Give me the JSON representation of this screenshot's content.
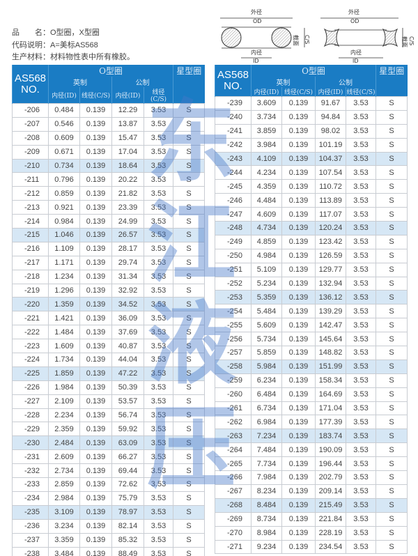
{
  "info": {
    "product_label": "品　　名：",
    "product_value": "O型圈，X型圈",
    "code_label": "代码说明：",
    "code_value": "A=美标AS568",
    "material_label": "生产材料：",
    "material_value": "材料物性表中所有橡胶。"
  },
  "diagram": {
    "od_cn": "外径",
    "od": "OD",
    "id_cn": "内径",
    "id": "ID",
    "cs_cn": "截面",
    "cs": "C/S"
  },
  "watermark": [
    "东",
    "江",
    "液",
    "压"
  ],
  "header": {
    "no_line1": "AS568",
    "no_line2": "NO.",
    "oring": "O型圈",
    "xring": "星型圈",
    "inch": "英制",
    "metric": "公制",
    "inner": "内径(ID)",
    "cs": "线径(C/S)"
  },
  "colors": {
    "header_bg": "#1a7cc4",
    "highlight_row": "#d6e7f5"
  },
  "tables": {
    "left": [
      [
        "-206",
        "0.484",
        "0.139",
        "12.29",
        "3.53",
        "S"
      ],
      [
        "-207",
        "0.546",
        "0.139",
        "13.87",
        "3.53",
        "S"
      ],
      [
        "-208",
        "0.609",
        "0.139",
        "15.47",
        "3.53",
        "S"
      ],
      [
        "-209",
        "0.671",
        "0.139",
        "17.04",
        "3.53",
        "S"
      ],
      [
        "-210",
        "0.734",
        "0.139",
        "18.64",
        "3.53",
        "S"
      ],
      [
        "-211",
        "0.796",
        "0.139",
        "20.22",
        "3.53",
        "S"
      ],
      [
        "-212",
        "0.859",
        "0.139",
        "21.82",
        "3.53",
        "S"
      ],
      [
        "-213",
        "0.921",
        "0.139",
        "23.39",
        "3.53",
        "S"
      ],
      [
        "-214",
        "0.984",
        "0.139",
        "24.99",
        "3.53",
        "S"
      ],
      [
        "-215",
        "1.046",
        "0.139",
        "26.57",
        "3.53",
        "S"
      ],
      [
        "-216",
        "1.109",
        "0.139",
        "28.17",
        "3.53",
        "S"
      ],
      [
        "-217",
        "1.171",
        "0.139",
        "29.74",
        "3.53",
        "S"
      ],
      [
        "-218",
        "1.234",
        "0.139",
        "31.34",
        "3.53",
        "S"
      ],
      [
        "-219",
        "1.296",
        "0.139",
        "32.92",
        "3.53",
        "S"
      ],
      [
        "-220",
        "1.359",
        "0.139",
        "34.52",
        "3.53",
        "S"
      ],
      [
        "-221",
        "1.421",
        "0.139",
        "36.09",
        "3.53",
        "S"
      ],
      [
        "-222",
        "1.484",
        "0.139",
        "37.69",
        "3.53",
        "S"
      ],
      [
        "-223",
        "1.609",
        "0.139",
        "40.87",
        "3.53",
        "S"
      ],
      [
        "-224",
        "1.734",
        "0.139",
        "44.04",
        "3.53",
        "S"
      ],
      [
        "-225",
        "1.859",
        "0.139",
        "47.22",
        "3.53",
        "S"
      ],
      [
        "-226",
        "1.984",
        "0.139",
        "50.39",
        "3.53",
        "S"
      ],
      [
        "-227",
        "2.109",
        "0.139",
        "53.57",
        "3.53",
        "S"
      ],
      [
        "-228",
        "2.234",
        "0.139",
        "56.74",
        "3.53",
        "S"
      ],
      [
        "-229",
        "2.359",
        "0.139",
        "59.92",
        "3.53",
        "S"
      ],
      [
        "-230",
        "2.484",
        "0.139",
        "63.09",
        "3.53",
        "S"
      ],
      [
        "-231",
        "2.609",
        "0.139",
        "66.27",
        "3.53",
        "S"
      ],
      [
        "-232",
        "2.734",
        "0.139",
        "69.44",
        "3.53",
        "S"
      ],
      [
        "-233",
        "2.859",
        "0.139",
        "72.62",
        "3.53",
        "S"
      ],
      [
        "-234",
        "2.984",
        "0.139",
        "75.79",
        "3.53",
        "S"
      ],
      [
        "-235",
        "3.109",
        "0.139",
        "78.97",
        "3.53",
        "S"
      ],
      [
        "-236",
        "3.234",
        "0.139",
        "82.14",
        "3.53",
        "S"
      ],
      [
        "-237",
        "3.359",
        "0.139",
        "85.32",
        "3.53",
        "S"
      ],
      [
        "-238",
        "3.484",
        "0.139",
        "88.49",
        "3.53",
        "S"
      ]
    ],
    "right": [
      [
        "-239",
        "3.609",
        "0.139",
        "91.67",
        "3.53",
        "S"
      ],
      [
        "-240",
        "3.734",
        "0.139",
        "94.84",
        "3.53",
        "S"
      ],
      [
        "-241",
        "3.859",
        "0.139",
        "98.02",
        "3.53",
        "S"
      ],
      [
        "-242",
        "3.984",
        "0.139",
        "101.19",
        "3.53",
        "S"
      ],
      [
        "-243",
        "4.109",
        "0.139",
        "104.37",
        "3.53",
        "S"
      ],
      [
        "-244",
        "4.234",
        "0.139",
        "107.54",
        "3.53",
        "S"
      ],
      [
        "-245",
        "4.359",
        "0.139",
        "110.72",
        "3.53",
        "S"
      ],
      [
        "-246",
        "4.484",
        "0.139",
        "113.89",
        "3.53",
        "S"
      ],
      [
        "-247",
        "4.609",
        "0.139",
        "117.07",
        "3.53",
        "S"
      ],
      [
        "-248",
        "4.734",
        "0.139",
        "120.24",
        "3.53",
        "S"
      ],
      [
        "-249",
        "4.859",
        "0.139",
        "123.42",
        "3.53",
        "S"
      ],
      [
        "-250",
        "4.984",
        "0.139",
        "126.59",
        "3.53",
        "S"
      ],
      [
        "-251",
        "5.109",
        "0.139",
        "129.77",
        "3.53",
        "S"
      ],
      [
        "-252",
        "5.234",
        "0.139",
        "132.94",
        "3.53",
        "S"
      ],
      [
        "-253",
        "5.359",
        "0.139",
        "136.12",
        "3.53",
        "S"
      ],
      [
        "-254",
        "5.484",
        "0.139",
        "139.29",
        "3.53",
        "S"
      ],
      [
        "-255",
        "5.609",
        "0.139",
        "142.47",
        "3.53",
        "S"
      ],
      [
        "-256",
        "5.734",
        "0.139",
        "145.64",
        "3.53",
        "S"
      ],
      [
        "-257",
        "5.859",
        "0.139",
        "148.82",
        "3.53",
        "S"
      ],
      [
        "-258",
        "5.984",
        "0.139",
        "151.99",
        "3.53",
        "S"
      ],
      [
        "-259",
        "6.234",
        "0.139",
        "158.34",
        "3.53",
        "S"
      ],
      [
        "-260",
        "6.484",
        "0.139",
        "164.69",
        "3.53",
        "S"
      ],
      [
        "-261",
        "6.734",
        "0.139",
        "171.04",
        "3.53",
        "S"
      ],
      [
        "-262",
        "6.984",
        "0.139",
        "177.39",
        "3.53",
        "S"
      ],
      [
        "-263",
        "7.234",
        "0.139",
        "183.74",
        "3.53",
        "S"
      ],
      [
        "-264",
        "7.484",
        "0.139",
        "190.09",
        "3.53",
        "S"
      ],
      [
        "-265",
        "7.734",
        "0.139",
        "196.44",
        "3.53",
        "S"
      ],
      [
        "-266",
        "7.984",
        "0.139",
        "202.79",
        "3.53",
        "S"
      ],
      [
        "-267",
        "8.234",
        "0.139",
        "209.14",
        "3.53",
        "S"
      ],
      [
        "-268",
        "8.484",
        "0.139",
        "215.49",
        "3.53",
        "S"
      ],
      [
        "-269",
        "8.734",
        "0.139",
        "221.84",
        "3.53",
        "S"
      ],
      [
        "-270",
        "8.984",
        "0.139",
        "228.19",
        "3.53",
        "S"
      ],
      [
        "-271",
        "9.234",
        "0.139",
        "234.54",
        "3.53",
        "S"
      ]
    ]
  }
}
